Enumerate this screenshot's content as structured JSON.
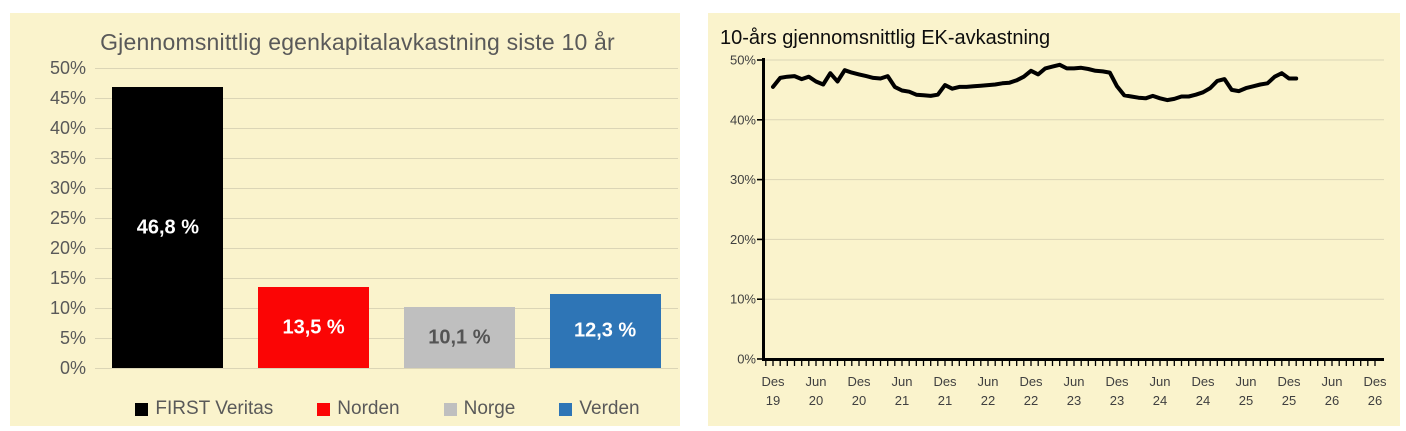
{
  "panel_bg": "#FAF3CC",
  "grid_color": "#DBD5B6",
  "chart_data": [
    {
      "type": "bar",
      "title": "Gjennomsnittlig egenkapitalavkastning siste 10 år",
      "categories": [
        "FIRST Veritas",
        "Norden",
        "Norge",
        "Verden"
      ],
      "values": [
        46.8,
        13.5,
        10.1,
        12.3
      ],
      "value_labels": [
        "46,8 %",
        "13,5 %",
        "10,1 %",
        "12,3 %"
      ],
      "bar_colors": [
        "#000000",
        "#FB0505",
        "#BFBFBF",
        "#2E75B6"
      ],
      "value_label_colors": [
        "#FFFFFF",
        "#FFFFFF",
        "#545454",
        "#FFFFFF"
      ],
      "ylim": [
        0,
        50
      ],
      "ytick_step": 5,
      "ytick_suffix": "%",
      "grid": true,
      "legend_position": "bottom",
      "legend": [
        {
          "label": "FIRST Veritas",
          "color": "#000000"
        },
        {
          "label": "Norden",
          "color": "#FB0505"
        },
        {
          "label": "Norge",
          "color": "#BFBFBF"
        },
        {
          "label": "Verden",
          "color": "#2E75B6"
        }
      ]
    },
    {
      "type": "line",
      "title": "10-års gjennomsnittlig EK-avkastning",
      "x_start_month": "Des 2019",
      "months_per_point": 1,
      "x_axis_total_months": 84,
      "x_tick_labels": [
        [
          "Des",
          "19"
        ],
        [
          "Jun",
          "20"
        ],
        [
          "Des",
          "20"
        ],
        [
          "Jun",
          "21"
        ],
        [
          "Des",
          "21"
        ],
        [
          "Jun",
          "22"
        ],
        [
          "Des",
          "22"
        ],
        [
          "Jun",
          "23"
        ],
        [
          "Des",
          "23"
        ],
        [
          "Jun",
          "24"
        ],
        [
          "Des",
          "24"
        ],
        [
          "Jun",
          "25"
        ],
        [
          "Des",
          "25"
        ],
        [
          "Jun",
          "26"
        ],
        [
          "Des",
          "26"
        ]
      ],
      "ylim": [
        0,
        50
      ],
      "ytick_step": 10,
      "ytick_suffix": "%",
      "grid": true,
      "line_color": "#000000",
      "series": [
        {
          "name": "10-års gjennomsnittlig EK-avkastning",
          "values": [
            45.5,
            47.0,
            47.2,
            47.3,
            46.8,
            47.2,
            46.4,
            45.9,
            47.8,
            46.4,
            48.3,
            47.9,
            47.6,
            47.3,
            47.0,
            46.9,
            47.3,
            45.5,
            44.9,
            44.7,
            44.2,
            44.1,
            44.0,
            44.2,
            45.8,
            45.2,
            45.5,
            45.5,
            45.6,
            45.7,
            45.8,
            45.9,
            46.1,
            46.2,
            46.6,
            47.2,
            48.2,
            47.6,
            48.6,
            48.9,
            49.2,
            48.6,
            48.6,
            48.7,
            48.5,
            48.2,
            48.1,
            47.9,
            45.6,
            44.1,
            43.9,
            43.7,
            43.6,
            44.0,
            43.6,
            43.3,
            43.5,
            43.9,
            43.9,
            44.2,
            44.6,
            45.3,
            46.5,
            46.8,
            45.0,
            44.8,
            45.3,
            45.6,
            45.9,
            46.1,
            47.2,
            47.8,
            46.9,
            46.9
          ]
        }
      ]
    }
  ]
}
